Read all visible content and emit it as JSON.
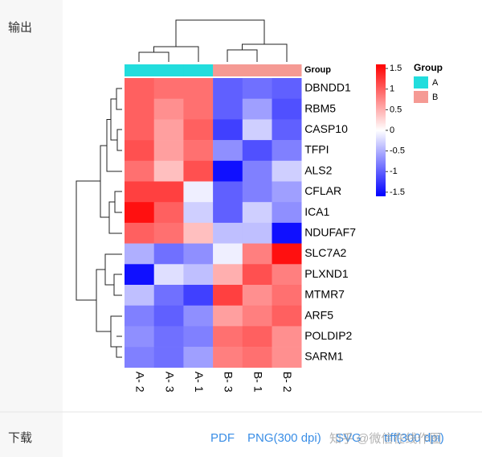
{
  "sidebar": {
    "output": "输出",
    "download": "下载"
  },
  "downloads": [
    "PDF",
    "PNG(300 dpi)",
    "SVG",
    "tiff(300 dpi)"
  ],
  "watermark": "知乎 @微信在线作图",
  "chart_data": {
    "type": "heatmap",
    "columns": [
      "A- 2",
      "A- 3",
      "A- 1",
      "B- 3",
      "B- 1",
      "B- 2"
    ],
    "rows": [
      "DBNDD1",
      "RBM5",
      "CASP10",
      "TFPI",
      "ALS2",
      "CFLAR",
      "ICA1",
      "NDUFAF7",
      "SLC7A2",
      "PLXND1",
      "MTMR7",
      "ARF5",
      "POLDIP2",
      "SARM1"
    ],
    "values": [
      [
        1.0,
        0.9,
        0.9,
        -1.0,
        -0.9,
        -1.0
      ],
      [
        1.0,
        0.7,
        0.9,
        -1.0,
        -0.6,
        -1.1
      ],
      [
        1.0,
        0.6,
        1.0,
        -1.2,
        -0.3,
        -1.0
      ],
      [
        1.1,
        0.6,
        0.9,
        -0.7,
        -1.1,
        -0.8
      ],
      [
        0.9,
        0.4,
        1.1,
        -1.5,
        -0.8,
        -0.3
      ],
      [
        1.2,
        1.2,
        -0.1,
        -1.0,
        -0.8,
        -0.6
      ],
      [
        1.5,
        1.0,
        -0.3,
        -1.0,
        -0.3,
        -0.7
      ],
      [
        1.0,
        0.9,
        0.4,
        -0.4,
        -0.4,
        -1.5
      ],
      [
        -0.5,
        -0.9,
        -0.7,
        -0.1,
        0.8,
        1.5
      ],
      [
        -1.5,
        -0.2,
        -0.4,
        0.5,
        1.1,
        0.8
      ],
      [
        -0.4,
        -0.9,
        -1.2,
        1.2,
        0.7,
        0.9
      ],
      [
        -0.8,
        -1.0,
        -0.7,
        0.6,
        0.8,
        1.0
      ],
      [
        -0.7,
        -0.9,
        -0.8,
        0.9,
        1.0,
        0.7
      ],
      [
        -0.8,
        -0.9,
        -0.6,
        0.8,
        0.9,
        0.7
      ]
    ],
    "colors": [
      "#0000ff",
      "#ffffff",
      "#ff0000"
    ],
    "zlim": [
      -1.6,
      1.6
    ],
    "zticks": [
      1.5,
      1,
      0.5,
      0,
      -0.5,
      -1,
      -1.5
    ],
    "annotation": {
      "title": "Group",
      "groups": [
        {
          "name": "A",
          "color": "#22dddd"
        },
        {
          "name": "B",
          "color": "#f59a94"
        }
      ],
      "column_groups": [
        0,
        0,
        0,
        1,
        1,
        1
      ]
    }
  }
}
